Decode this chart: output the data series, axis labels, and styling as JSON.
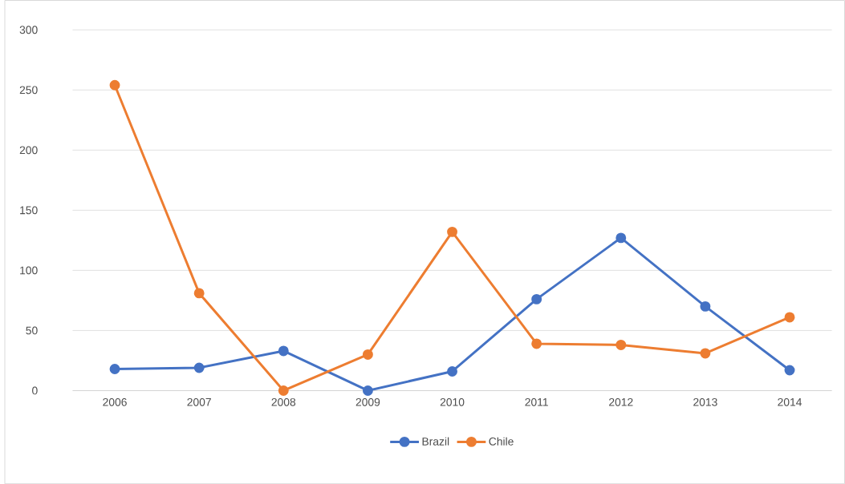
{
  "chart_data": {
    "type": "line",
    "categories": [
      "2006",
      "2007",
      "2008",
      "2009",
      "2010",
      "2011",
      "2012",
      "2013",
      "2014"
    ],
    "series": [
      {
        "name": "Brazil",
        "color": "#4472c4",
        "values": [
          18,
          19,
          33,
          0,
          16,
          76,
          127,
          70,
          17
        ]
      },
      {
        "name": "Chile",
        "color": "#ed7d31",
        "values": [
          254,
          81,
          0,
          30,
          132,
          39,
          38,
          31,
          61
        ]
      }
    ],
    "ylim": [
      0,
      300
    ],
    "yticks": [
      0,
      50,
      100,
      150,
      200,
      250,
      300
    ],
    "grid": "y",
    "legend": "bottom",
    "marker": "circle",
    "line_style": "solid"
  }
}
